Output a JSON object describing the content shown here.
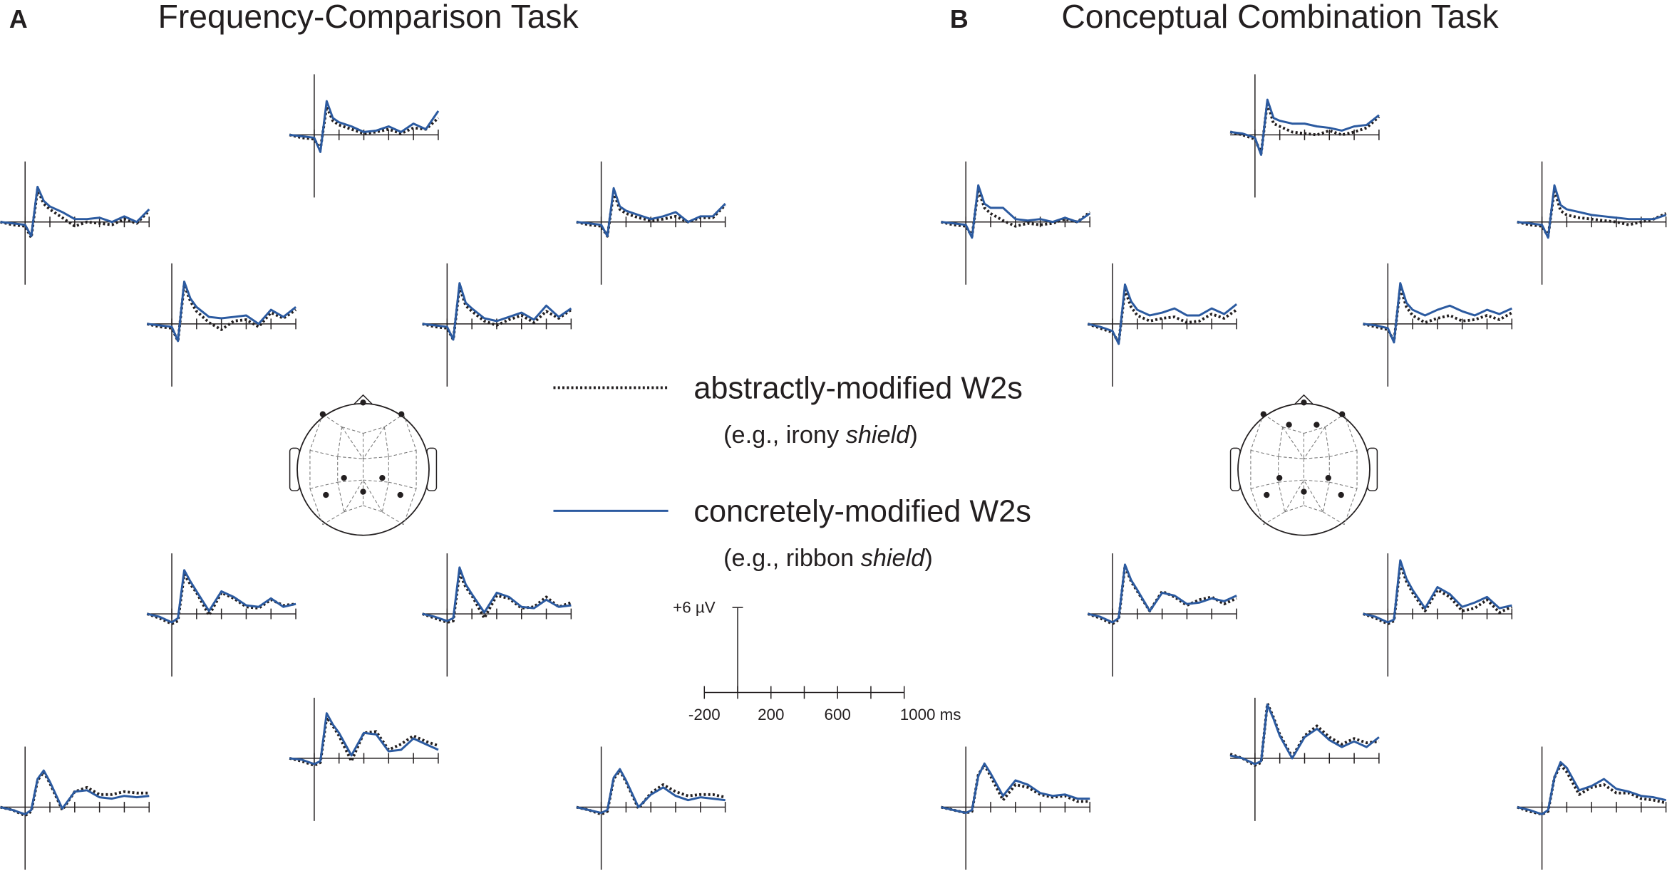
{
  "chart_data": [
    {
      "type": "line",
      "panel": "A",
      "title": "Frequency-Comparison Task",
      "x": [
        -200,
        -100,
        0,
        50,
        100,
        150,
        200,
        300,
        400,
        500,
        600,
        700,
        800,
        900,
        1000
      ],
      "xlim": [
        -200,
        1000
      ],
      "ylim": [
        -4.4,
        4.3
      ],
      "xticks": [
        0,
        200,
        400,
        600,
        800,
        1000
      ],
      "plots": [
        {
          "series": [
            {
              "values": [
                0,
                -0.2,
                -0.3,
                -1.0,
                2.0,
                1.0,
                0.7,
                0.4,
                0.1,
                0.2,
                0.4,
                0.1,
                0.5,
                0.4,
                1.2
              ]
            },
            {
              "values": [
                0,
                -0.1,
                -0.2,
                -1.2,
                2.4,
                1.2,
                0.9,
                0.6,
                0.2,
                0.3,
                0.6,
                0.2,
                0.8,
                0.4,
                1.7
              ]
            }
          ]
        },
        {
          "series": [
            {
              "values": [
                0,
                -0.2,
                -0.3,
                -1.1,
                2.3,
                1.3,
                0.9,
                0.3,
                -0.3,
                0.0,
                -0.1,
                -0.2,
                0.2,
                -0.1,
                0.8
              ]
            },
            {
              "values": [
                0,
                -0.1,
                -0.2,
                -1.0,
                2.5,
                1.5,
                1.1,
                0.7,
                0.2,
                0.2,
                0.3,
                0.0,
                0.4,
                0.0,
                0.9
              ]
            }
          ]
        },
        {
          "series": [
            {
              "values": [
                0,
                -0.2,
                -0.3,
                -1.0,
                2.1,
                0.9,
                0.6,
                0.3,
                0.1,
                0.2,
                0.4,
                0.0,
                0.3,
                0.3,
                1.2
              ]
            },
            {
              "values": [
                0,
                -0.1,
                -0.2,
                -1.0,
                2.4,
                1.1,
                0.8,
                0.5,
                0.2,
                0.4,
                0.7,
                0.0,
                0.4,
                0.4,
                1.3
              ]
            }
          ]
        },
        {
          "series": [
            {
              "values": [
                0,
                -0.2,
                -0.3,
                -1.2,
                2.8,
                1.6,
                0.9,
                0.1,
                -0.4,
                0.2,
                0.3,
                -0.2,
                0.8,
                0.4,
                1.0
              ]
            },
            {
              "values": [
                0,
                -0.1,
                -0.2,
                -1.2,
                3.0,
                1.8,
                1.2,
                0.5,
                0.4,
                0.5,
                0.6,
                0.0,
                1.0,
                0.5,
                1.2
              ]
            }
          ]
        },
        {
          "series": [
            {
              "values": [
                0,
                -0.2,
                -0.3,
                -1.1,
                2.6,
                1.3,
                0.9,
                0.2,
                -0.1,
                0.3,
                0.6,
                0.1,
                0.9,
                0.4,
                1.0
              ]
            },
            {
              "values": [
                0,
                -0.1,
                -0.2,
                -1.1,
                2.9,
                1.5,
                1.1,
                0.4,
                0.2,
                0.5,
                0.8,
                0.3,
                1.3,
                0.5,
                1.1
              ]
            }
          ]
        },
        {
          "series": [
            {
              "values": [
                0,
                -0.3,
                -0.7,
                -0.5,
                2.8,
                2.1,
                1.5,
                -0.1,
                1.5,
                1.1,
                0.5,
                0.4,
                1.0,
                0.6,
                0.7
              ]
            },
            {
              "values": [
                0,
                -0.2,
                -0.6,
                -0.3,
                3.1,
                2.3,
                1.6,
                0.2,
                1.6,
                1.2,
                0.6,
                0.5,
                1.1,
                0.5,
                0.7
              ]
            }
          ]
        },
        {
          "series": [
            {
              "values": [
                0,
                -0.3,
                -0.6,
                -0.5,
                2.9,
                1.9,
                1.3,
                -0.3,
                1.3,
                1.1,
                0.4,
                0.5,
                1.2,
                0.5,
                0.8
              ]
            },
            {
              "values": [
                0,
                -0.2,
                -0.5,
                -0.3,
                3.3,
                2.1,
                1.4,
                0.1,
                1.5,
                1.2,
                0.5,
                0.4,
                1.0,
                0.5,
                0.6
              ]
            }
          ]
        },
        {
          "series": [
            {
              "values": [
                0,
                -0.2,
                -0.5,
                -0.3,
                2.9,
                2.3,
                1.6,
                -0.2,
                1.8,
                1.9,
                0.6,
                1.0,
                1.6,
                1.2,
                0.9
              ]
            },
            {
              "values": [
                0,
                -0.1,
                -0.4,
                -0.2,
                3.2,
                2.4,
                1.8,
                0.2,
                1.8,
                1.7,
                0.5,
                0.6,
                1.4,
                1.0,
                0.6
              ]
            }
          ]
        },
        {
          "series": [
            {
              "values": [
                0,
                -0.2,
                -0.6,
                -0.3,
                1.9,
                2.5,
                1.7,
                -0.2,
                1.1,
                1.4,
                0.9,
                0.9,
                1.1,
                1.0,
                1.0
              ]
            },
            {
              "values": [
                0,
                -0.2,
                -0.5,
                -0.2,
                2.0,
                2.6,
                1.8,
                -0.1,
                1.1,
                1.2,
                0.7,
                0.6,
                0.8,
                0.7,
                0.8
              ]
            }
          ]
        },
        {
          "series": [
            {
              "values": [
                0,
                -0.2,
                -0.5,
                -0.3,
                2.0,
                2.6,
                1.8,
                -0.1,
                1.0,
                1.6,
                1.1,
                0.8,
                0.9,
                0.9,
                0.7
              ]
            },
            {
              "values": [
                0,
                -0.2,
                -0.4,
                -0.2,
                2.1,
                2.7,
                1.9,
                0.0,
                0.9,
                1.4,
                0.8,
                0.5,
                0.7,
                0.6,
                0.5
              ]
            }
          ]
        }
      ]
    },
    {
      "type": "line",
      "panel": "B",
      "title": "Conceptual Combination Task",
      "x": [
        -200,
        -100,
        0,
        50,
        100,
        150,
        200,
        300,
        400,
        500,
        600,
        700,
        800,
        900,
        1000
      ],
      "xlim": [
        -200,
        1000
      ],
      "ylim": [
        -4.4,
        4.3
      ],
      "xticks": [
        0,
        200,
        400,
        600,
        800,
        1000
      ],
      "plots": [
        {
          "series": [
            {
              "values": [
                0.2,
                0.0,
                -0.3,
                -1.3,
                2.3,
                0.8,
                0.6,
                0.2,
                0.1,
                0.0,
                0.3,
                0.0,
                0.2,
                0.5,
                1.3
              ]
            },
            {
              "values": [
                0.2,
                0.1,
                -0.2,
                -1.4,
                2.5,
                1.2,
                1.0,
                0.8,
                0.8,
                0.6,
                0.5,
                0.3,
                0.6,
                0.7,
                1.4
              ]
            }
          ]
        },
        {
          "series": [
            {
              "values": [
                0,
                -0.2,
                -0.3,
                -1.0,
                2.3,
                1.0,
                0.6,
                0.1,
                -0.3,
                -0.1,
                -0.2,
                -0.1,
                0.2,
                0.0,
                0.7
              ]
            },
            {
              "values": [
                0,
                -0.1,
                -0.2,
                -1.1,
                2.6,
                1.3,
                1.0,
                1.0,
                0.2,
                0.1,
                0.2,
                0.0,
                0.3,
                0.0,
                0.6
              ]
            }
          ]
        },
        {
          "series": [
            {
              "values": [
                0,
                -0.2,
                -0.3,
                -1.0,
                2.3,
                0.8,
                0.5,
                0.3,
                0.2,
                0.1,
                0.0,
                -0.2,
                0.0,
                0.2,
                0.6
              ]
            },
            {
              "values": [
                0,
                -0.1,
                -0.2,
                -1.1,
                2.6,
                1.2,
                0.9,
                0.7,
                0.5,
                0.4,
                0.3,
                0.2,
                0.2,
                0.2,
                0.5
              ]
            }
          ]
        },
        {
          "series": [
            {
              "values": [
                0,
                -0.3,
                -0.6,
                -1.3,
                2.4,
                1.2,
                0.6,
                0.2,
                0.4,
                0.5,
                0.1,
                0.2,
                0.7,
                0.4,
                1.0
              ]
            },
            {
              "values": [
                0,
                -0.2,
                -0.5,
                -1.4,
                2.8,
                1.6,
                1.0,
                0.6,
                0.8,
                1.1,
                0.6,
                0.6,
                1.1,
                0.7,
                1.4
              ]
            }
          ]
        },
        {
          "series": [
            {
              "values": [
                0,
                -0.2,
                -0.4,
                -1.2,
                2.6,
                1.2,
                0.6,
                0.1,
                0.4,
                0.6,
                0.2,
                0.3,
                0.6,
                0.3,
                0.8
              ]
            },
            {
              "values": [
                0,
                -0.1,
                -0.3,
                -1.3,
                2.9,
                1.5,
                1.0,
                0.6,
                1.0,
                1.3,
                0.9,
                0.6,
                1.0,
                0.7,
                1.1
              ]
            }
          ]
        },
        {
          "series": [
            {
              "values": [
                0,
                -0.3,
                -0.7,
                -0.4,
                3.4,
                2.3,
                1.6,
                0.2,
                1.6,
                1.2,
                0.6,
                1.0,
                1.2,
                0.7,
                1.1
              ]
            },
            {
              "values": [
                0,
                -0.2,
                -0.6,
                -0.3,
                3.5,
                2.4,
                1.7,
                0.2,
                1.5,
                1.3,
                0.7,
                0.8,
                1.1,
                0.9,
                1.3
              ]
            }
          ]
        },
        {
          "series": [
            {
              "values": [
                0,
                -0.3,
                -0.7,
                -0.5,
                3.5,
                2.3,
                1.5,
                0.2,
                1.7,
                1.2,
                0.2,
                0.4,
                1.0,
                0.1,
                0.5
              ]
            },
            {
              "values": [
                0,
                -0.2,
                -0.6,
                -0.4,
                3.8,
                2.5,
                1.7,
                0.4,
                1.9,
                1.4,
                0.5,
                0.8,
                1.2,
                0.4,
                0.6
              ]
            }
          ]
        },
        {
          "series": [
            {
              "values": [
                0.3,
                0.0,
                -0.5,
                -0.3,
                3.9,
                2.9,
                1.7,
                0.1,
                1.6,
                2.3,
                1.5,
                1.0,
                1.4,
                1.1,
                1.2
              ]
            },
            {
              "values": [
                0.2,
                0.0,
                -0.4,
                -0.2,
                3.8,
                2.8,
                1.6,
                0.0,
                1.5,
                2.1,
                1.3,
                0.8,
                1.2,
                0.8,
                1.5
              ]
            }
          ]
        },
        {
          "series": [
            {
              "values": [
                0,
                -0.2,
                -0.4,
                -0.3,
                2.3,
                3.0,
                2.2,
                0.5,
                1.6,
                1.4,
                0.9,
                0.7,
                0.8,
                0.4,
                0.4
              ]
            },
            {
              "values": [
                0,
                -0.2,
                -0.4,
                -0.2,
                2.2,
                3.1,
                2.4,
                0.8,
                1.9,
                1.6,
                1.0,
                0.8,
                0.9,
                0.6,
                0.6
              ]
            }
          ]
        },
        {
          "series": [
            {
              "values": [
                0,
                -0.3,
                -0.5,
                -0.3,
                2.1,
                3.0,
                2.5,
                0.9,
                1.4,
                1.6,
                1.0,
                1.0,
                0.6,
                0.5,
                0.3
              ]
            },
            {
              "values": [
                0,
                -0.2,
                -0.5,
                -0.2,
                2.1,
                3.2,
                2.8,
                1.2,
                1.5,
                2.0,
                1.3,
                1.1,
                0.8,
                0.7,
                0.5
              ]
            }
          ]
        }
      ]
    }
  ],
  "legend": [
    {
      "name": "abstractly-modified W2s",
      "example": [
        "(e.g., irony ",
        "shield",
        ")"
      ],
      "color": "#231f20",
      "style": "dotted"
    },
    {
      "name": "concretely-modified W2s",
      "example": [
        "(e.g., ribbon ",
        "shield",
        ")"
      ],
      "color": "#2b5aa0",
      "style": "solid"
    }
  ],
  "scale_bar": {
    "ylim": [
      0,
      6
    ],
    "ytick": {
      "value": 6,
      "label": "+6 µV"
    },
    "xlim": [
      -200,
      1000
    ],
    "xticks": [
      -200,
      0,
      200,
      400,
      600,
      800,
      1000
    ],
    "xtick_labels": [
      -200,
      200,
      600,
      {
        "value": 1000,
        "label": "1000 ms"
      }
    ]
  }
}
